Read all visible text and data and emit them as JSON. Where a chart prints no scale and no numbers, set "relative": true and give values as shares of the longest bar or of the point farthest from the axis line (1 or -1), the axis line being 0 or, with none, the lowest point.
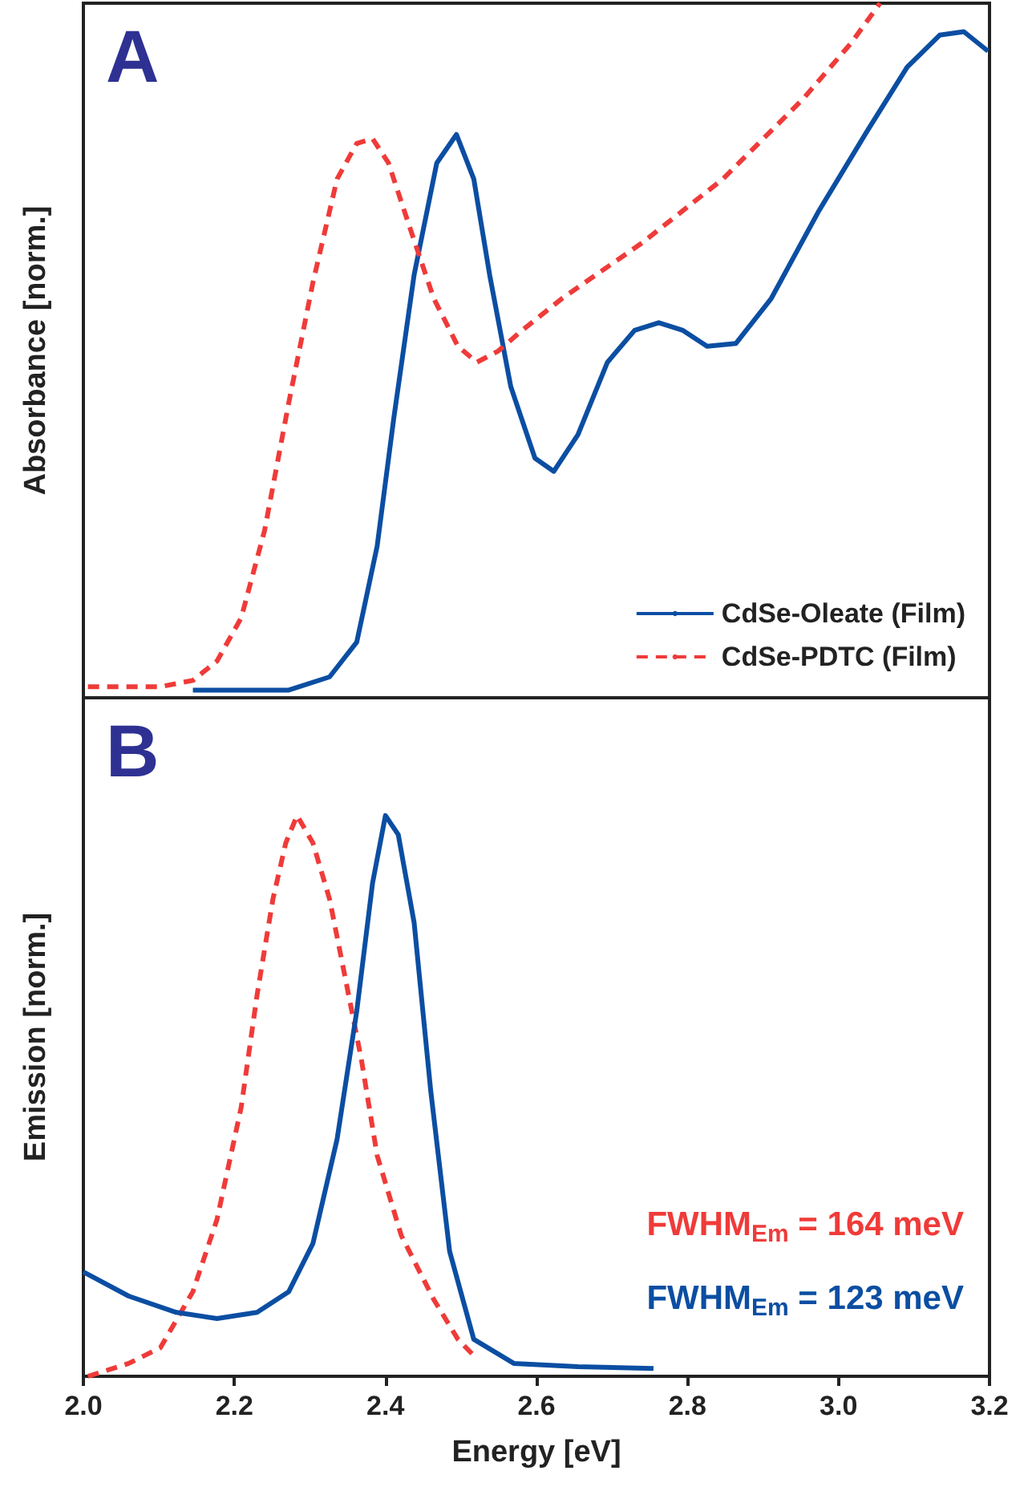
{
  "chart_data": [
    {
      "type": "line",
      "ylabel": "Absorbance [norm.]",
      "relative": true,
      "xlim": [
        2.0,
        3.2
      ],
      "tick_labels": false,
      "grid": false,
      "marker": "none",
      "legend": "bottom right",
      "annotations": [
        "A"
      ],
      "series": [
        {
          "name": "CdSe-Oleate (Film)",
          "color": "#0b4ea2",
          "line_style": "solid",
          "x": [
            2.145,
            2.272,
            2.326,
            2.362,
            2.389,
            2.411,
            2.438,
            2.468,
            2.494,
            2.517,
            2.538,
            2.566,
            2.598,
            2.623,
            2.655,
            2.694,
            2.73,
            2.762,
            2.794,
            2.826,
            2.864,
            2.911,
            2.974,
            3.038,
            3.091,
            3.134,
            3.166,
            3.198
          ],
          "values": [
            0.011,
            0.011,
            0.03,
            0.08,
            0.218,
            0.402,
            0.609,
            0.77,
            0.811,
            0.747,
            0.609,
            0.448,
            0.345,
            0.326,
            0.379,
            0.483,
            0.529,
            0.54,
            0.529,
            0.506,
            0.51,
            0.575,
            0.701,
            0.816,
            0.908,
            0.954,
            0.959,
            0.931
          ]
        },
        {
          "name": "CdSe-PDTC (Film)",
          "color": "#ef3b39",
          "line_style": "dashed",
          "x": [
            2.006,
            2.102,
            2.145,
            2.177,
            2.209,
            2.24,
            2.272,
            2.304,
            2.336,
            2.362,
            2.383,
            2.404,
            2.432,
            2.464,
            2.496,
            2.521,
            2.549,
            2.581,
            2.634,
            2.74,
            2.847,
            2.953,
            3.017,
            3.055
          ],
          "values": [
            0.016,
            0.016,
            0.025,
            0.053,
            0.115,
            0.241,
            0.425,
            0.598,
            0.747,
            0.798,
            0.805,
            0.77,
            0.678,
            0.575,
            0.506,
            0.483,
            0.499,
            0.529,
            0.575,
            0.655,
            0.747,
            0.862,
            0.943,
            1.0
          ]
        }
      ]
    },
    {
      "type": "line",
      "xlabel": "Energy [eV]",
      "ylabel": "Emission [norm.]",
      "relative": true,
      "xlim": [
        2.0,
        3.2
      ],
      "xticks": [
        {
          "value": 2.0,
          "label": "2.0"
        },
        {
          "value": 2.2,
          "label": "2.2"
        },
        {
          "value": 2.4,
          "label": "2.4"
        },
        {
          "value": 2.6,
          "label": "2.6"
        },
        {
          "value": 2.8,
          "label": "2.8"
        },
        {
          "value": 3.0,
          "label": "3.0"
        },
        {
          "value": 3.2,
          "label": "3.2"
        }
      ],
      "tick_labels": "x",
      "grid": false,
      "marker": "none",
      "annotations": [
        "B",
        "FWHM$_{Em}$ = 164 meV",
        "FWHM$_{Em}$ = 123 meV"
      ],
      "series": [
        {
          "color": "#ef3b39",
          "line_style": "dashed",
          "x": [
            2.006,
            2.06,
            2.102,
            2.145,
            2.177,
            2.209,
            2.23,
            2.251,
            2.268,
            2.283,
            2.304,
            2.326,
            2.347,
            2.368,
            2.389,
            2.421,
            2.464,
            2.496,
            2.517
          ],
          "values": [
            0.0,
            0.023,
            0.051,
            0.151,
            0.28,
            0.48,
            0.68,
            0.851,
            0.951,
            1.0,
            0.951,
            0.851,
            0.709,
            0.566,
            0.394,
            0.251,
            0.137,
            0.066,
            0.037
          ]
        },
        {
          "color": "#0b4ea2",
          "line_style": "solid",
          "x": [
            2.0,
            2.06,
            2.123,
            2.177,
            2.23,
            2.272,
            2.304,
            2.336,
            2.362,
            2.383,
            2.4,
            2.417,
            2.438,
            2.46,
            2.485,
            2.517,
            2.57,
            2.655,
            2.755
          ],
          "values": [
            0.186,
            0.143,
            0.114,
            0.103,
            0.114,
            0.151,
            0.237,
            0.423,
            0.651,
            0.88,
            1.0,
            0.966,
            0.809,
            0.509,
            0.223,
            0.066,
            0.023,
            0.017,
            0.014
          ]
        }
      ]
    }
  ]
}
